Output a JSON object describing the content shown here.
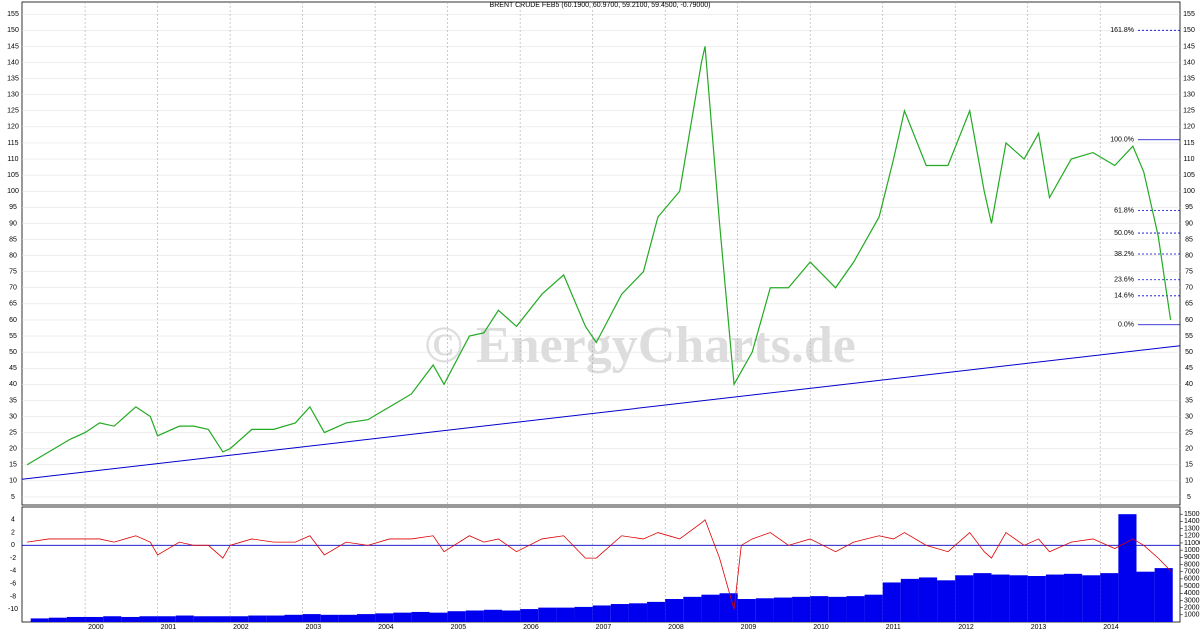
{
  "chart_data": {
    "type": "line",
    "title": "BRENT CRUDE FEB5 (60.1900, 60.9700, 59.2100, 59.4500, -0.79000)",
    "watermark": "© EnergyCharts.de",
    "x": [
      1999.2,
      1999.5,
      1999.8,
      2000.0,
      2000.2,
      2000.4,
      2000.7,
      2000.9,
      2001.0,
      2001.3,
      2001.5,
      2001.7,
      2001.9,
      2002.0,
      2002.3,
      2002.6,
      2002.9,
      2003.1,
      2003.3,
      2003.6,
      2003.9,
      2004.2,
      2004.5,
      2004.8,
      2004.95,
      2005.3,
      2005.5,
      2005.7,
      2005.95,
      2006.3,
      2006.6,
      2006.9,
      2007.05,
      2007.4,
      2007.7,
      2007.9,
      2008.2,
      2008.5,
      2008.55,
      2008.75,
      2008.95,
      2009.05,
      2009.2,
      2009.45,
      2009.7,
      2010.0,
      2010.35,
      2010.6,
      2010.95,
      2011.15,
      2011.3,
      2011.6,
      2011.9,
      2012.2,
      2012.4,
      2012.5,
      2012.7,
      2012.95,
      2013.15,
      2013.3,
      2013.6,
      2013.9,
      2014.2,
      2014.45,
      2014.6,
      2014.8,
      2014.97
    ],
    "series": [
      {
        "name": "Brent",
        "color": "#22aa22",
        "values": [
          15,
          19,
          23,
          25,
          28,
          27,
          33,
          30,
          24,
          27,
          27,
          26,
          19,
          20,
          26,
          26,
          28,
          33,
          25,
          28,
          29,
          33,
          37,
          46,
          40,
          55,
          56,
          63,
          58,
          68,
          74,
          58,
          53,
          68,
          75,
          92,
          100,
          140,
          145,
          90,
          40,
          44,
          50,
          70,
          70,
          78,
          70,
          78,
          92,
          110,
          125,
          108,
          108,
          125,
          100,
          90,
          115,
          110,
          118,
          98,
          110,
          112,
          108,
          114,
          106,
          86,
          60
        ]
      }
    ],
    "xlim": [
      1999.13,
      2015.1
    ],
    "xticks": [
      2000,
      2001,
      2002,
      2003,
      2004,
      2005,
      2006,
      2007,
      2008,
      2009,
      2010,
      2011,
      2012,
      2013,
      2014
    ],
    "ylim": [
      2.5,
      158.8
    ],
    "yticks": [
      5,
      10,
      15,
      20,
      25,
      30,
      35,
      40,
      45,
      50,
      55,
      60,
      65,
      70,
      75,
      80,
      85,
      90,
      95,
      100,
      105,
      110,
      115,
      120,
      125,
      130,
      135,
      140,
      145,
      150,
      155
    ],
    "grid": true,
    "trendline": {
      "color": "#0000cc",
      "x": [
        1999.13,
        2015.1
      ],
      "y": [
        10.5,
        52
      ]
    },
    "fib_levels": [
      {
        "label": "161.8%",
        "value": 150
      },
      {
        "label": "100.0%",
        "value": 116
      },
      {
        "label": "61.8%",
        "value": 94
      },
      {
        "label": "50.0%",
        "value": 87
      },
      {
        "label": "38.2%",
        "value": 80.5
      },
      {
        "label": "23.6%",
        "value": 72.5
      },
      {
        "label": "14.6%",
        "value": 67.5
      },
      {
        "label": "0.0%",
        "value": 58.5
      }
    ],
    "fib_color": "#0000cc",
    "oscillator": {
      "color": "#dd0000",
      "zero_color": "#0000cc",
      "values": [
        0.5,
        1,
        1,
        1,
        1,
        0.5,
        1.5,
        0.5,
        -1.5,
        0.5,
        0,
        0,
        -2,
        0,
        1,
        0.5,
        0.5,
        1.5,
        -1.5,
        0.5,
        0,
        1,
        1,
        1.5,
        -1,
        1.5,
        0.5,
        1,
        -1,
        1,
        1.5,
        -2,
        -2,
        1.5,
        1,
        2,
        1,
        3.5,
        4,
        -2,
        -10,
        0,
        1,
        2,
        0,
        1,
        -1,
        0.5,
        1.5,
        1,
        2,
        0,
        -1,
        2,
        -1,
        -2,
        2,
        0,
        1,
        -1,
        0.5,
        1,
        -0.5,
        1,
        0,
        -2,
        -4
      ],
      "ylim": [
        -12,
        6
      ],
      "yticks": [
        4,
        2,
        0,
        -2,
        -4,
        -6,
        -8,
        -10
      ]
    },
    "volume": {
      "color": "#0000ee",
      "x": [
        1999.25,
        1999.5,
        1999.75,
        2000.0,
        2000.25,
        2000.5,
        2000.75,
        2001.0,
        2001.25,
        2001.5,
        2001.75,
        2002.0,
        2002.25,
        2002.5,
        2002.75,
        2003.0,
        2003.25,
        2003.5,
        2003.75,
        2004.0,
        2004.25,
        2004.5,
        2004.75,
        2005.0,
        2005.25,
        2005.5,
        2005.75,
        2006.0,
        2006.25,
        2006.5,
        2006.75,
        2007.0,
        2007.25,
        2007.5,
        2007.75,
        2008.0,
        2008.25,
        2008.5,
        2008.75,
        2009.0,
        2009.25,
        2009.5,
        2009.75,
        2010.0,
        2010.25,
        2010.5,
        2010.75,
        2011.0,
        2011.25,
        2011.5,
        2011.75,
        2012.0,
        2012.25,
        2012.5,
        2012.75,
        2013.0,
        2013.25,
        2013.5,
        2013.75,
        2014.0,
        2014.25,
        2014.5,
        2014.75
      ],
      "values": [
        500,
        600,
        700,
        700,
        800,
        700,
        800,
        800,
        900,
        800,
        800,
        800,
        900,
        900,
        1000,
        1100,
        1000,
        1000,
        1100,
        1200,
        1300,
        1400,
        1300,
        1500,
        1600,
        1700,
        1600,
        1800,
        2000,
        2000,
        2100,
        2300,
        2500,
        2600,
        2800,
        3200,
        3500,
        3800,
        4000,
        3200,
        3300,
        3400,
        3500,
        3600,
        3500,
        3600,
        3800,
        5500,
        6000,
        6200,
        5800,
        6500,
        6800,
        6600,
        6500,
        6400,
        6600,
        6700,
        6500,
        6800,
        15000,
        7000,
        7500
      ],
      "ylim": [
        0,
        16000
      ],
      "yticks": [
        1000,
        2000,
        3000,
        4000,
        5000,
        6000,
        7000,
        8000,
        9000,
        10000,
        11000,
        12000,
        13000,
        14000,
        15000
      ]
    }
  }
}
